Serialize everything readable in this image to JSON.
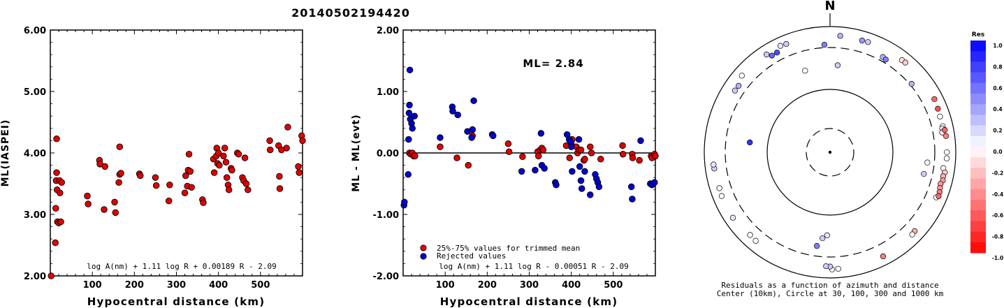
{
  "title": "20140502194420",
  "chart_data": [
    {
      "type": "scatter",
      "xlabel": "Hypocentral distance (km)",
      "ylabel": "ML(IASPEI)",
      "xlim": [
        0,
        600
      ],
      "ylim": [
        2.0,
        6.0
      ],
      "xticks": [
        100,
        200,
        300,
        400,
        500
      ],
      "yticks": [
        2.0,
        3.0,
        4.0,
        5.0,
        6.0
      ],
      "ytick_labels": [
        "2.00",
        "3.00",
        "4.00",
        "5.00",
        "6.00"
      ],
      "formula": "log A(nm) + 1.11 log R + 0.00189 R - 2.09",
      "marker_color": "#e00000",
      "points": [
        [
          2,
          2.0
        ],
        [
          12,
          2.54
        ],
        [
          13,
          3.1
        ],
        [
          14,
          3.55
        ],
        [
          15,
          4.23
        ],
        [
          15,
          3.68
        ],
        [
          16,
          3.4
        ],
        [
          17,
          2.88
        ],
        [
          20,
          2.86
        ],
        [
          22,
          3.55
        ],
        [
          23,
          3.35
        ],
        [
          25,
          2.88
        ],
        [
          27,
          3.52
        ],
        [
          88,
          3.3
        ],
        [
          90,
          3.17
        ],
        [
          117,
          3.88
        ],
        [
          118,
          3.82
        ],
        [
          128,
          3.08
        ],
        [
          130,
          3.78
        ],
        [
          153,
          3.2
        ],
        [
          155,
          3.03
        ],
        [
          163,
          3.52
        ],
        [
          165,
          3.65
        ],
        [
          165,
          4.1
        ],
        [
          168,
          3.67
        ],
        [
          212,
          3.66
        ],
        [
          214,
          3.63
        ],
        [
          250,
          3.6
        ],
        [
          252,
          3.47
        ],
        [
          282,
          3.22
        ],
        [
          284,
          3.48
        ],
        [
          320,
          3.35
        ],
        [
          322,
          3.63
        ],
        [
          326,
          3.46
        ],
        [
          328,
          3.72
        ],
        [
          330,
          3.98
        ],
        [
          333,
          3.7
        ],
        [
          336,
          3.44
        ],
        [
          362,
          3.24
        ],
        [
          364,
          3.19
        ],
        [
          388,
          3.9
        ],
        [
          390,
          3.68
        ],
        [
          395,
          3.95
        ],
        [
          396,
          4.08
        ],
        [
          398,
          3.83
        ],
        [
          400,
          4.0
        ],
        [
          402,
          3.8
        ],
        [
          412,
          3.95
        ],
        [
          415,
          4.08
        ],
        [
          418,
          3.85
        ],
        [
          420,
          3.6
        ],
        [
          423,
          3.48
        ],
        [
          425,
          3.4
        ],
        [
          430,
          3.75
        ],
        [
          432,
          3.72
        ],
        [
          445,
          4.0
        ],
        [
          448,
          3.98
        ],
        [
          457,
          3.6
        ],
        [
          460,
          3.55
        ],
        [
          463,
          3.92
        ],
        [
          466,
          3.5
        ],
        [
          470,
          3.4
        ],
        [
          522,
          4.2
        ],
        [
          523,
          4.05
        ],
        [
          543,
          4.12
        ],
        [
          545,
          3.62
        ],
        [
          546,
          3.42
        ],
        [
          550,
          4.05
        ],
        [
          562,
          4.08
        ],
        [
          565,
          4.42
        ],
        [
          590,
          3.78
        ],
        [
          592,
          3.68
        ],
        [
          598,
          4.28
        ],
        [
          600,
          4.2
        ]
      ]
    },
    {
      "type": "scatter",
      "xlabel": "Hypocentral distance (km)",
      "ylabel": "ML - ML(evt)",
      "xlim": [
        0,
        600
      ],
      "ylim": [
        -2.0,
        2.0
      ],
      "xticks": [
        100,
        200,
        300,
        400,
        500
      ],
      "yticks": [
        -2.0,
        -1.0,
        0.0,
        1.0,
        2.0
      ],
      "ytick_labels": [
        "-2.00",
        "-1.00",
        "0.00",
        "1.00",
        "2.00"
      ],
      "annotation": "ML= 2.84",
      "formula": "log A(nm) + 1.11 log R - 0.00051 R - 2.09",
      "legend": [
        {
          "label": "25%-75% values for trimmed mean",
          "color": "#e00000"
        },
        {
          "label": "Rejected values",
          "color": "#0000d0"
        }
      ],
      "trimmed": [
        [
          15,
          0.0
        ],
        [
          18,
          -0.02
        ],
        [
          22,
          0.0
        ],
        [
          25,
          -0.05
        ],
        [
          28,
          -0.05
        ],
        [
          88,
          0.1
        ],
        [
          128,
          -0.08
        ],
        [
          155,
          -0.2
        ],
        [
          165,
          0.28
        ],
        [
          250,
          0.15
        ],
        [
          252,
          0.02
        ],
        [
          284,
          -0.06
        ],
        [
          320,
          0.02
        ],
        [
          322,
          -0.05
        ],
        [
          326,
          0.05
        ],
        [
          330,
          0.08
        ],
        [
          333,
          0.05
        ],
        [
          388,
          0.12
        ],
        [
          396,
          -0.08
        ],
        [
          400,
          0.15
        ],
        [
          402,
          0.22
        ],
        [
          412,
          0.1
        ],
        [
          415,
          0.0
        ],
        [
          418,
          0.05
        ],
        [
          423,
          0.05
        ],
        [
          430,
          -0.12
        ],
        [
          432,
          -0.1
        ],
        [
          445,
          0.1
        ],
        [
          448,
          0.0
        ],
        [
          470,
          -0.1
        ],
        [
          522,
          0.12
        ],
        [
          523,
          -0.02
        ],
        [
          545,
          -0.02
        ],
        [
          546,
          -0.08
        ],
        [
          562,
          -0.12
        ],
        [
          590,
          -0.05
        ],
        [
          592,
          -0.08
        ],
        [
          598,
          -0.02
        ],
        [
          600,
          -0.05
        ]
      ],
      "rejected": [
        [
          2,
          -0.85
        ],
        [
          3,
          -0.8
        ],
        [
          12,
          -0.35
        ],
        [
          13,
          0.22
        ],
        [
          14,
          0.65
        ],
        [
          15,
          0.78
        ],
        [
          16,
          1.35
        ],
        [
          17,
          0.55
        ],
        [
          20,
          0.48
        ],
        [
          22,
          0.4
        ],
        [
          27,
          0.6
        ],
        [
          88,
          0.25
        ],
        [
          117,
          0.75
        ],
        [
          118,
          0.68
        ],
        [
          130,
          0.62
        ],
        [
          153,
          0.35
        ],
        [
          163,
          0.25
        ],
        [
          165,
          0.38
        ],
        [
          168,
          0.85
        ],
        [
          212,
          0.3
        ],
        [
          214,
          0.28
        ],
        [
          282,
          -0.3
        ],
        [
          314,
          -0.28
        ],
        [
          328,
          0.32
        ],
        [
          330,
          -0.2
        ],
        [
          336,
          -0.25
        ],
        [
          362,
          -0.48
        ],
        [
          364,
          -0.52
        ],
        [
          390,
          0.3
        ],
        [
          395,
          0.22
        ],
        [
          398,
          0.18
        ],
        [
          400,
          0.1
        ],
        [
          402,
          -0.3
        ],
        [
          418,
          0.22
        ],
        [
          420,
          -0.22
        ],
        [
          423,
          -0.45
        ],
        [
          425,
          -0.58
        ],
        [
          432,
          -0.3
        ],
        [
          445,
          -0.68
        ],
        [
          457,
          -0.35
        ],
        [
          460,
          -0.42
        ],
        [
          463,
          -0.48
        ],
        [
          466,
          -0.55
        ],
        [
          543,
          -0.55
        ],
        [
          545,
          -0.75
        ],
        [
          565,
          0.2
        ],
        [
          588,
          -0.5
        ],
        [
          592,
          -0.52
        ],
        [
          598,
          -0.48
        ]
      ]
    },
    {
      "type": "scatter",
      "subtype": "polar-residuals",
      "north_label": "N",
      "caption_line1": "Residuals as a function of azimuth and distance",
      "caption_line2": "Center (10km), Circle at 30, 100, 300 and 1000 km",
      "ring_distances_km": [
        10,
        30,
        100,
        300,
        1000
      ],
      "colorbar": {
        "title": "Res",
        "range": [
          -1.0,
          1.0
        ],
        "tick_labels": [
          "1.0",
          "0.8",
          "0.6",
          "0.4",
          "0.2",
          "0.0",
          "-0.2",
          "-0.4",
          "-0.6",
          "-0.8",
          "-1.0"
        ],
        "positive_color": "#0000ff",
        "negative_color": "#ff0000",
        "zero_color": "#ffffff"
      },
      "stations": [
        {
          "az": 5,
          "dist": 600,
          "res": 0.3
        },
        {
          "az": 16,
          "dist": 580,
          "res": 0.4
        },
        {
          "az": 19,
          "dist": 590,
          "res": 0.2
        },
        {
          "az": -22,
          "dist": 600,
          "res": 0.2
        },
        {
          "az": -25,
          "dist": 620,
          "res": 0.1
        },
        {
          "az": -33,
          "dist": 590,
          "res": 0.2
        },
        {
          "az": -49,
          "dist": 600,
          "res": 0.0
        },
        {
          "az": 38,
          "dist": 600,
          "res": -0.1
        },
        {
          "az": 40,
          "dist": 610,
          "res": -0.2
        },
        {
          "az": 63,
          "dist": 610,
          "res": -0.6
        },
        {
          "az": 68,
          "dist": 580,
          "res": -0.7
        },
        {
          "az": 72,
          "dist": 560,
          "res": 0.0
        },
        {
          "az": 77,
          "dist": 560,
          "res": 0.0
        },
        {
          "az": 78,
          "dist": 530,
          "res": 0.1
        },
        {
          "az": 80,
          "dist": 505,
          "res": -0.1
        },
        {
          "az": 79,
          "dist": 600,
          "res": -0.6
        },
        {
          "az": 82,
          "dist": 610,
          "res": -0.5
        },
        {
          "az": 90,
          "dist": 600,
          "res": 0.0
        },
        {
          "az": 93,
          "dist": 600,
          "res": 0.0
        },
        {
          "az": 98,
          "dist": 520,
          "res": 0.0
        },
        {
          "az": 100,
          "dist": 590,
          "res": -0.2
        },
        {
          "az": 102,
          "dist": 560,
          "res": -0.3
        },
        {
          "az": 104,
          "dist": 580,
          "res": -0.4
        },
        {
          "az": 106,
          "dist": 540,
          "res": -0.4
        },
        {
          "az": 108,
          "dist": 560,
          "res": -0.4
        },
        {
          "az": 110,
          "dist": 590,
          "res": -0.5
        },
        {
          "az": 113,
          "dist": 550,
          "res": 0.0
        },
        {
          "az": 112,
          "dist": 610,
          "res": -0.6
        },
        {
          "az": 133,
          "dist": 560,
          "res": -0.3
        },
        {
          "az": 135,
          "dist": 580,
          "res": 0.0
        },
        {
          "az": 153,
          "dist": 600,
          "res": -0.5
        },
        {
          "az": 176,
          "dist": 600,
          "res": 0.0
        },
        {
          "az": 179,
          "dist": 610,
          "res": 0.0
        },
        {
          "az": 180,
          "dist": 520,
          "res": 0.2
        },
        {
          "az": 182,
          "dist": 510,
          "res": 0.2
        },
        {
          "az": 224,
          "dist": 540,
          "res": 0.0
        },
        {
          "az": 220,
          "dist": 560,
          "res": 0.0
        },
        {
          "az": 236,
          "dist": 610,
          "res": 0.1
        },
        {
          "az": 248,
          "dist": 600,
          "res": 0.0
        },
        {
          "az": 252,
          "dist": 580,
          "res": 0.0
        },
        {
          "az": 262,
          "dist": 600,
          "res": 0.2
        },
        {
          "az": 264,
          "dist": 610,
          "res": 0.1
        },
        {
          "az": 303,
          "dist": 490,
          "res": 0.2
        },
        {
          "az": 306,
          "dist": 480,
          "res": 0.3
        },
        {
          "az": 329,
          "dist": 475,
          "res": 0.6
        },
        {
          "az": 332,
          "dist": 480,
          "res": 0.7
        },
        {
          "az": 357,
          "dist": 355,
          "res": 0.5
        },
        {
          "az": 29,
          "dist": 380,
          "res": 0.3
        },
        {
          "az": 31,
          "dist": 365,
          "res": 0.5
        },
        {
          "az": 50,
          "dist": 330,
          "res": 0.3
        },
        {
          "az": 5,
          "dist": 190,
          "res": 0.2
        },
        {
          "az": -17,
          "dist": 180,
          "res": 0.0
        },
        {
          "az": -83,
          "dist": 160,
          "res": 0.8
        },
        {
          "az": 96,
          "dist": 250,
          "res": 0.0
        },
        {
          "az": 103,
          "dist": 240,
          "res": 0.2
        },
        {
          "az": 182,
          "dist": 170,
          "res": 0.1
        },
        {
          "az": 185,
          "dist": 185,
          "res": 0.2
        },
        {
          "az": 188,
          "dist": 230,
          "res": 0.5
        }
      ]
    }
  ]
}
